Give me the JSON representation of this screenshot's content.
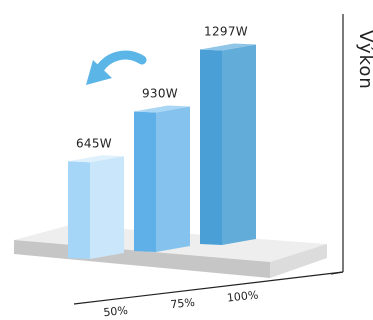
{
  "chart_data": {
    "type": "bar",
    "categories": [
      "50%",
      "75%",
      "100%"
    ],
    "values": [
      645,
      930,
      1297
    ],
    "data_labels": [
      "645W",
      "930W",
      "1297W"
    ],
    "title": "",
    "xlabel": "",
    "ylabel": "Výkon",
    "ylim": [
      0,
      1400
    ],
    "grid": false,
    "legend": "none",
    "style": "3d-isometric",
    "colors": {
      "bars": [
        {
          "front": "#a6d6f7",
          "side": "#c9e6fb",
          "top": "#dff1fd"
        },
        {
          "front": "#5fb0e8",
          "side": "#85c3ee",
          "top": "#a9d6f4"
        },
        {
          "front": "#4a9fd6",
          "side": "#62acd9",
          "top": "#8fc5e7"
        }
      ],
      "platform_top": "#eeeeee",
      "platform_side": "#c6c6c6",
      "arrow": "#5bb5e6",
      "axis": "#222222"
    }
  }
}
